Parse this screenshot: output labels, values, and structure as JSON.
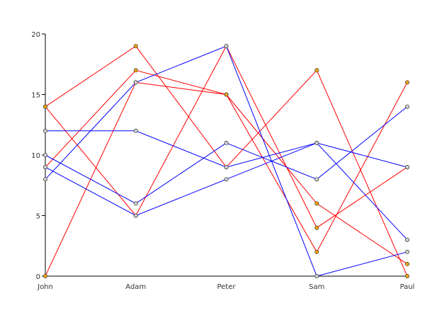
{
  "chart_data": {
    "type": "line",
    "categories": [
      "John",
      "Adam",
      "Peter",
      "Sam",
      "Paul"
    ],
    "ylim": [
      0,
      20
    ],
    "y_ticks": [
      0,
      5,
      10,
      15,
      20
    ],
    "grid": false,
    "series": [
      {
        "color": "#ff0000",
        "marker_fill": "#ffa500",
        "values": [
          14,
          5,
          19,
          4,
          9
        ]
      },
      {
        "color": "#ff0000",
        "marker_fill": "#ffa500",
        "values": [
          0,
          16,
          15,
          2,
          16
        ]
      },
      {
        "color": "#ff0000",
        "marker_fill": "#ffa500",
        "values": [
          9,
          17,
          15,
          6,
          1
        ]
      },
      {
        "color": "#ff0000",
        "marker_fill": "#ffa500",
        "values": [
          14,
          19,
          9,
          17,
          0
        ]
      },
      {
        "color": "#0000ff",
        "marker_fill": "#d3d3d3",
        "values": [
          12,
          12,
          9,
          11,
          3
        ]
      },
      {
        "color": "#0000ff",
        "marker_fill": "#d3d3d3",
        "values": [
          10,
          6,
          11,
          8,
          14
        ]
      },
      {
        "color": "#0000ff",
        "marker_fill": "#d3d3d3",
        "values": [
          8,
          16,
          19,
          0,
          2
        ]
      },
      {
        "color": "#0000ff",
        "marker_fill": "#d3d3d3",
        "values": [
          9,
          5,
          8,
          11,
          9
        ]
      }
    ]
  }
}
